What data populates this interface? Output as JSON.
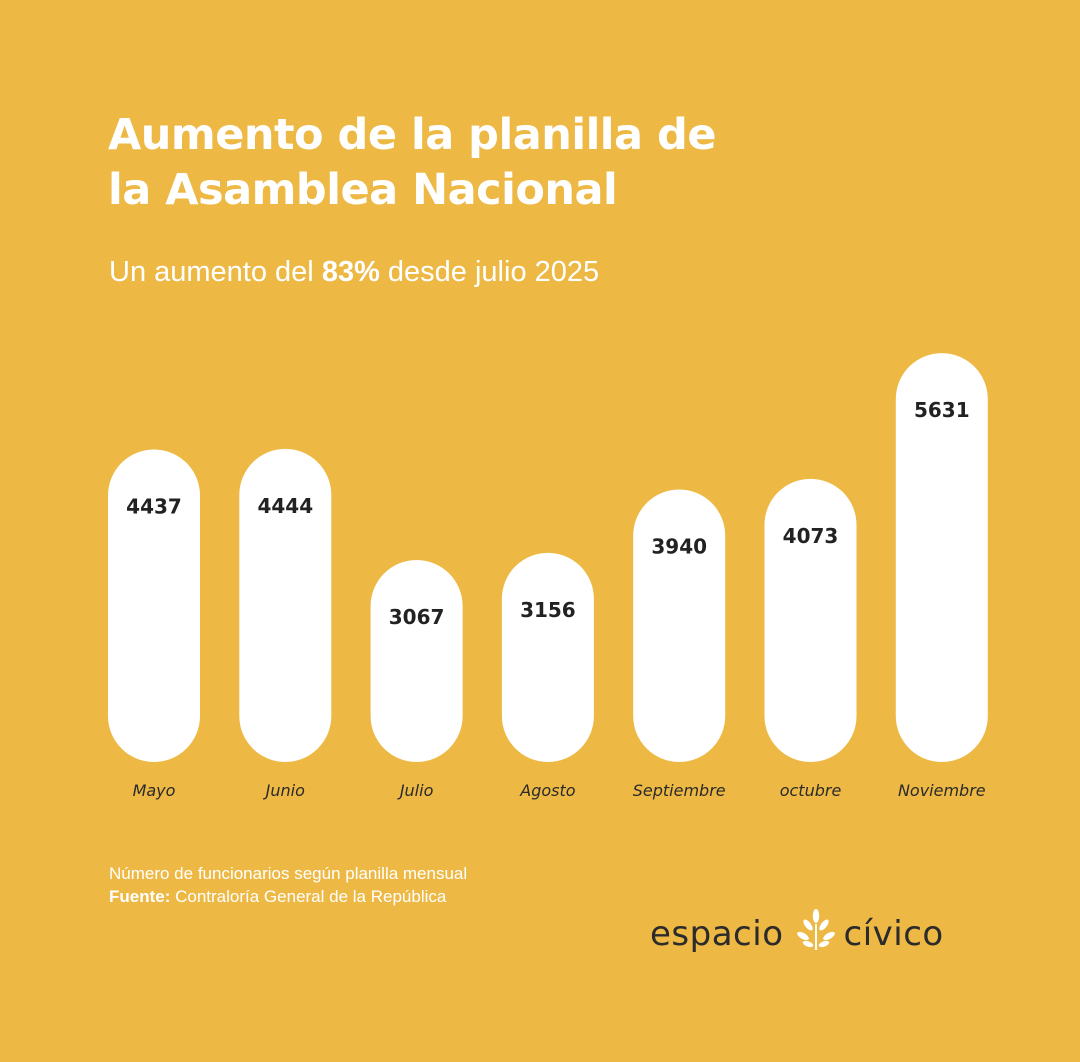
{
  "header": {
    "title_line1": "Aumento de la planilla de",
    "title_line2": "la Asamblea Nacional",
    "subtitle_prefix": "Un aumento del ",
    "subtitle_highlight": "83%",
    "subtitle_suffix": " desde julio 2025"
  },
  "chart_data": {
    "type": "bar",
    "title": "Aumento de la planilla de la Asamblea Nacional",
    "subtitle": "Un aumento del 83% desde julio 2025",
    "categories": [
      "Mayo",
      "Junio",
      "Julio",
      "Agosto",
      "Septiembre",
      "octubre",
      "Noviembre"
    ],
    "values": [
      4437,
      4444,
      3067,
      3156,
      3940,
      4073,
      5631
    ],
    "data_labels": [
      "4437",
      "4444",
      "3067",
      "3156",
      "3940",
      "4073",
      "5631"
    ],
    "grid": false,
    "legend": "none",
    "bar_color": "#ffffff",
    "label_color": "#222222"
  },
  "footer": {
    "note": "Número de funcionarios según planilla mensual",
    "source_label": "Fuente:",
    "source_text": " Contraloría General de la República"
  },
  "logo": {
    "word1": "espacio",
    "word2": "cívico",
    "icon": "sprig-icon"
  },
  "colors": {
    "background": "#EDB944",
    "bars": "#ffffff",
    "text_light": "#ffffff",
    "text_dark": "#2b2b2b"
  }
}
